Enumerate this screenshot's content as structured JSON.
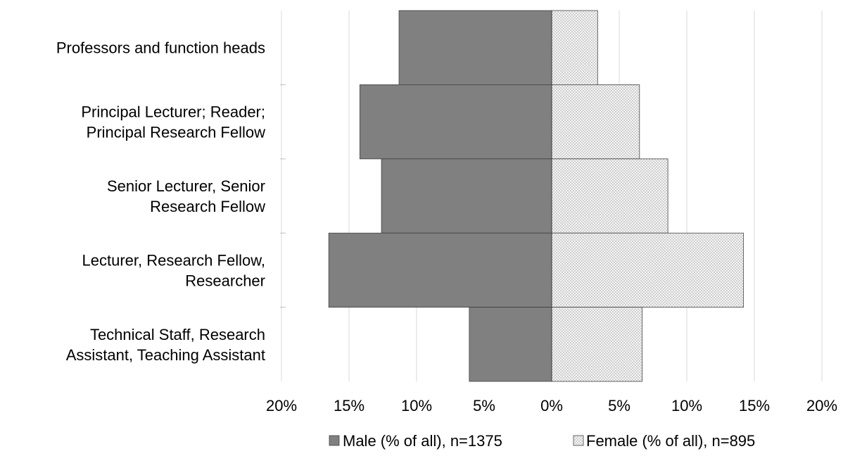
{
  "chart_data": {
    "type": "bar",
    "orientation": "horizontal",
    "diverging": true,
    "categories": [
      [
        "Professors and function heads"
      ],
      [
        "Principal Lecturer; Reader;",
        "Principal Research Fellow"
      ],
      [
        "Senior Lecturer, Senior",
        "Research Fellow"
      ],
      [
        "Lecturer, Research Fellow,",
        "Researcher"
      ],
      [
        "Technical Staff, Research",
        "Assistant, Teaching Assistant"
      ]
    ],
    "series": [
      {
        "name": "Male (% of all), n=1375",
        "values": [
          11.3,
          14.2,
          12.6,
          16.5,
          6.1
        ],
        "side": "left",
        "color": "#808080"
      },
      {
        "name": "Female (% of all), n=895",
        "values": [
          3.4,
          6.5,
          8.6,
          14.2,
          6.7
        ],
        "side": "right",
        "color": "#ffffff",
        "pattern": "dotted"
      }
    ],
    "xlim": [
      -20,
      20
    ],
    "xticks": [
      -20,
      -15,
      -10,
      -5,
      0,
      5,
      10,
      15,
      20
    ],
    "xtick_labels": [
      "20%",
      "15%",
      "10%",
      "5%",
      "0%",
      "5%",
      "10%",
      "15%",
      "20%"
    ],
    "grid": "vertical",
    "legend_position": "bottom"
  },
  "colors": {
    "male": "#808080",
    "female_bg": "#f2f2f2",
    "female_dots": "#9a9a9a",
    "grid": "#d9d9d9",
    "border": "#404040"
  }
}
